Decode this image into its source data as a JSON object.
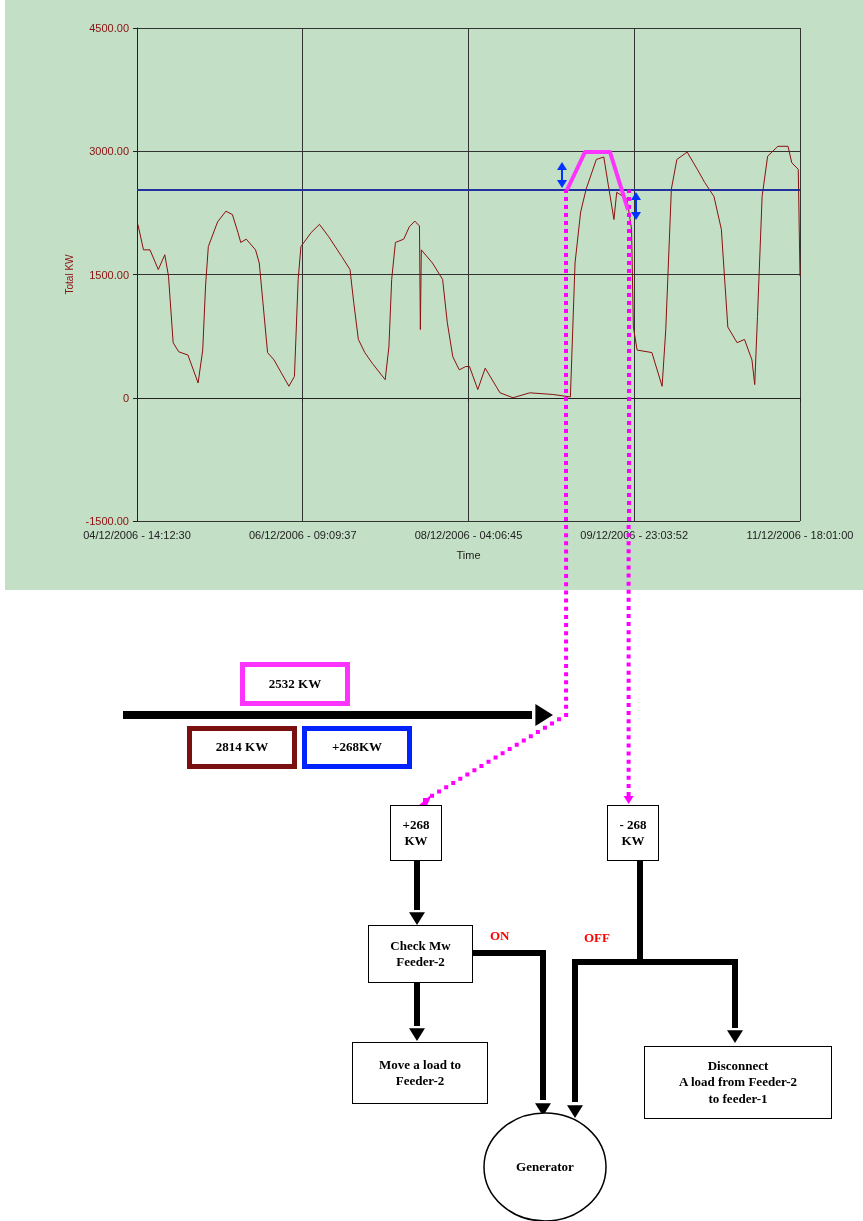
{
  "chart_data": {
    "type": "line",
    "xlabel": "Time",
    "ylabel": "Total KW",
    "xlim": [
      "2006-12-04T14:12",
      "2006-12-11T18:01"
    ],
    "xticks": [
      {
        "value": "2006-12-04T14:12",
        "label": "04/12/2006 - 14:12:30"
      },
      {
        "value": "2006-12-06T09:09",
        "label": "06/12/2006 - 09:09:37"
      },
      {
        "value": "2006-12-08T04:06",
        "label": "08/12/2006 - 04:06:45"
      },
      {
        "value": "2006-12-09T23:03",
        "label": "09/12/2006 - 23:03:52"
      },
      {
        "value": "2006-12-11T18:01",
        "label": "11/12/2006 - 18:01:00"
      }
    ],
    "ylim": [
      -1500,
      4500
    ],
    "yticks": [
      {
        "value": -1500,
        "label": "-1500.00"
      },
      0,
      {
        "value": 1500,
        "label": "1500.00"
      },
      {
        "value": 3000,
        "label": "3000.00"
      },
      {
        "value": 4500,
        "label": "4500.00"
      }
    ],
    "grid": true,
    "marker": "none",
    "line_style": "solid",
    "series": [
      {
        "color": "#8b1010",
        "x": [
          "2006-12-04T14:26",
          "2006-12-04T15:53",
          "2006-12-04T17:34",
          "2006-12-04T19:43",
          "2006-12-04T21:24",
          "2006-12-04T22:22",
          "2006-12-04T23:34",
          "2006-12-05T01:00",
          "2006-12-05T03:24",
          "2006-12-05T06:02",
          "2006-12-05T07:14",
          "2006-12-05T07:58",
          "2006-12-05T08:41",
          "2006-12-05T11:05",
          "2006-12-05T13:14",
          "2006-12-05T14:55",
          "2006-12-05T16:22",
          "2006-12-05T17:05",
          "2006-12-05T18:31",
          "2006-12-05T20:55",
          "2006-12-05T21:53",
          "2006-12-05T22:50",
          "2006-12-06T00:02",
          "2006-12-06T01:43",
          "2006-12-06T03:38",
          "2006-12-06T05:34",
          "2006-12-06T07:00",
          "2006-12-06T07:58",
          "2006-12-06T08:41",
          "2006-12-06T11:19",
          "2006-12-06T13:29",
          "2006-12-06T15:53",
          "2006-12-06T19:14",
          "2006-12-06T21:24",
          "2006-12-06T22:22",
          "2006-12-06T23:34",
          "2006-12-07T01:14",
          "2006-12-07T03:10",
          "2006-12-07T06:31",
          "2006-12-07T07:29",
          "2006-12-07T08:12",
          "2006-12-07T09:10",
          "2006-12-07T11:19",
          "2006-12-07T12:46",
          "2006-12-07T14:12",
          "2006-12-07T15:24",
          "2006-12-07T15:38",
          "2006-12-07T15:53",
          "2006-12-07T18:46",
          "2006-12-07T21:24",
          "2006-12-07T22:36",
          "2006-12-08T00:02",
          "2006-12-08T01:43",
          "2006-12-08T03:24",
          "2006-12-08T04:22",
          "2006-12-08T06:31",
          "2006-12-08T08:26",
          "2006-12-08T12:17",
          "2006-12-08T15:38",
          "2006-12-08T19:58",
          "2006-12-09T01:58",
          "2006-12-09T06:31",
          "2006-12-09T07:43",
          "2006-12-09T09:10",
          "2006-12-09T10:36",
          "2006-12-09T13:14",
          "2006-12-09T15:10",
          "2006-12-09T16:22",
          "2006-12-09T17:48",
          "2006-12-09T18:31",
          "2006-12-09T21:10",
          "2006-12-09T22:22",
          "2006-12-09T22:50",
          "2006-12-09T23:48",
          "2006-12-10T03:38",
          "2006-12-10T06:17",
          "2006-12-10T07:14",
          "2006-12-10T08:41",
          "2006-12-10T10:07",
          "2006-12-10T12:46",
          "2006-12-10T15:24",
          "2006-12-10T17:19",
          "2006-12-10T19:43",
          "2006-12-10T21:38",
          "2006-12-10T23:19",
          "2006-12-11T01:43",
          "2006-12-11T03:38",
          "2006-12-11T05:34",
          "2006-12-11T06:17",
          "2006-12-11T07:00",
          "2006-12-11T08:12",
          "2006-12-11T09:38",
          "2006-12-11T12:17",
          "2006-12-11T14:55",
          "2006-12-11T15:53",
          "2006-12-11T17:34",
          "2006-12-11T18:01"
        ],
        "values": [
          2110,
          1800,
          1800,
          1560,
          1740,
          1480,
          670,
          560,
          520,
          180,
          580,
          1360,
          1840,
          2140,
          2270,
          2230,
          2010,
          1890,
          1930,
          1800,
          1640,
          1160,
          550,
          460,
          300,
          140,
          260,
          1440,
          1840,
          2010,
          2110,
          1960,
          1720,
          1560,
          1160,
          710,
          550,
          420,
          220,
          620,
          1440,
          1890,
          1930,
          2080,
          2150,
          2090,
          830,
          1800,
          1640,
          1440,
          920,
          500,
          340,
          380,
          380,
          100,
          360,
          60,
          0,
          60,
          40,
          10,
          1640,
          2260,
          2540,
          2900,
          2930,
          2580,
          2170,
          2500,
          2420,
          2050,
          860,
          580,
          550,
          140,
          830,
          2540,
          2900,
          2990,
          2780,
          2620,
          2450,
          2050,
          860,
          670,
          710,
          460,
          160,
          990,
          2450,
          2940,
          3060,
          3060,
          2860,
          2780,
          1480
        ]
      }
    ],
    "ref_lines": [
      {
        "axis": "y",
        "value": 2532,
        "color": "#2233a0",
        "line_style": "solid"
      },
      {
        "axis": "x",
        "value": "2006-12-09T05:24",
        "color": "#ff00ff",
        "line_style": "dotted"
      },
      {
        "axis": "x",
        "value": "2006-12-09T21:36",
        "color": "#ff00ff",
        "line_style": "dotted"
      }
    ],
    "annotations": [
      "2532 KW",
      "2814 KW",
      "+268KW",
      "+268\nKW",
      "- 268\nKW",
      "Check Mw\nFeeder-2",
      "ON",
      "OFF",
      "Move a load to\nFeeder-2",
      "Disconnect\nA load from Feeder-2\nto feeder-1",
      "Generator"
    ]
  }
}
